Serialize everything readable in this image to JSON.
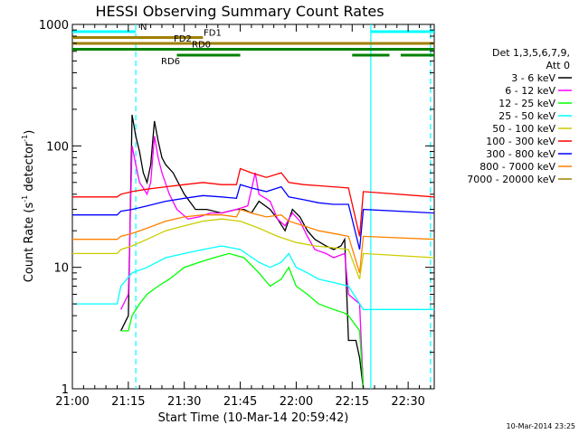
{
  "chart_data": {
    "type": "line",
    "title": "HESSI Observing Summary Count Rates",
    "xlabel": "Start Time (10-Mar-14 20:59:42)",
    "ylabel_main": "Count Rate (s",
    "ylabel_sup1": "-1",
    "ylabel_mid": " detector",
    "ylabel_sup2": "-1",
    "ylabel_end": ")",
    "y_scale": "log",
    "ylim": [
      1,
      1000
    ],
    "xlim_minutes": [
      0,
      97
    ],
    "x_ticks": [
      {
        "label": "21:00",
        "minute": 0
      },
      {
        "label": "21:15",
        "minute": 15
      },
      {
        "label": "21:30",
        "minute": 30
      },
      {
        "label": "21:45",
        "minute": 45
      },
      {
        "label": "22:00",
        "minute": 60
      },
      {
        "label": "22:15",
        "minute": 75
      },
      {
        "label": "22:30",
        "minute": 90
      }
    ],
    "y_ticks": [
      {
        "label": "1",
        "value": 1
      },
      {
        "label": "10",
        "value": 10
      },
      {
        "label": "100",
        "value": 100
      },
      {
        "label": "1000",
        "value": 1000
      }
    ],
    "legend_header": [
      "Det 1,3,5,6,7,9,",
      "Att 0"
    ],
    "legend_placement": "right",
    "timestamp": "10-Mar-2014 23:25",
    "series": [
      {
        "name": "3 - 6 keV",
        "color": "#000000",
        "points": [
          [
            13,
            3
          ],
          [
            15,
            4
          ],
          [
            16,
            180
          ],
          [
            17,
            120
          ],
          [
            18,
            90
          ],
          [
            19,
            60
          ],
          [
            20,
            50
          ],
          [
            21,
            70
          ],
          [
            22,
            160
          ],
          [
            23,
            110
          ],
          [
            24,
            80
          ],
          [
            25,
            70
          ],
          [
            27,
            60
          ],
          [
            30,
            40
          ],
          [
            33,
            30
          ],
          [
            36,
            30
          ],
          [
            40,
            28
          ],
          [
            44,
            30
          ],
          [
            46,
            30
          ],
          [
            48,
            28
          ],
          [
            50,
            35
          ],
          [
            53,
            30
          ],
          [
            55,
            25
          ],
          [
            57,
            20
          ],
          [
            59,
            30
          ],
          [
            61,
            26
          ],
          [
            63,
            20
          ],
          [
            65,
            17
          ],
          [
            68,
            15
          ],
          [
            70,
            14
          ],
          [
            72,
            15
          ],
          [
            73,
            17
          ],
          [
            74,
            2.5
          ],
          [
            76,
            2.5
          ],
          [
            77,
            1.8
          ],
          [
            78,
            1
          ]
        ]
      },
      {
        "name": "6 - 12 keV",
        "color": "#ff00ff",
        "points": [
          [
            13,
            4.5
          ],
          [
            15,
            6
          ],
          [
            16,
            100
          ],
          [
            17,
            70
          ],
          [
            18,
            50
          ],
          [
            19,
            45
          ],
          [
            20,
            40
          ],
          [
            21,
            50
          ],
          [
            22,
            120
          ],
          [
            23,
            80
          ],
          [
            24,
            60
          ],
          [
            26,
            40
          ],
          [
            28,
            30
          ],
          [
            31,
            25
          ],
          [
            34,
            26
          ],
          [
            37,
            28
          ],
          [
            40,
            28
          ],
          [
            44,
            30
          ],
          [
            47,
            32
          ],
          [
            49,
            60
          ],
          [
            50,
            40
          ],
          [
            53,
            35
          ],
          [
            55,
            25
          ],
          [
            57,
            22
          ],
          [
            59,
            28
          ],
          [
            61,
            24
          ],
          [
            63,
            18
          ],
          [
            65,
            14
          ],
          [
            68,
            13
          ],
          [
            70,
            12
          ],
          [
            73,
            13
          ],
          [
            74,
            6
          ],
          [
            77,
            5
          ],
          [
            78,
            1
          ]
        ]
      },
      {
        "name": "12 - 25 keV",
        "color": "#00ff00",
        "points": [
          [
            13,
            3
          ],
          [
            15,
            3
          ],
          [
            16,
            4
          ],
          [
            18,
            5
          ],
          [
            20,
            6
          ],
          [
            23,
            7
          ],
          [
            26,
            8
          ],
          [
            30,
            10
          ],
          [
            34,
            11
          ],
          [
            38,
            12
          ],
          [
            42,
            13
          ],
          [
            46,
            12
          ],
          [
            50,
            9
          ],
          [
            53,
            7
          ],
          [
            56,
            8
          ],
          [
            58,
            10
          ],
          [
            60,
            7
          ],
          [
            63,
            6
          ],
          [
            66,
            5
          ],
          [
            70,
            4.5
          ],
          [
            73,
            4.2
          ],
          [
            74,
            4
          ],
          [
            77,
            3
          ],
          [
            78,
            1
          ]
        ]
      },
      {
        "name": "25 - 50 keV",
        "color": "#00ffff",
        "points": [
          [
            0,
            5
          ],
          [
            12,
            5
          ],
          [
            13,
            7
          ],
          [
            16,
            9
          ],
          [
            20,
            10
          ],
          [
            25,
            12
          ],
          [
            30,
            13
          ],
          [
            35,
            14
          ],
          [
            40,
            15
          ],
          [
            45,
            14
          ],
          [
            50,
            11
          ],
          [
            53,
            10
          ],
          [
            56,
            11
          ],
          [
            58,
            13
          ],
          [
            60,
            10
          ],
          [
            63,
            9
          ],
          [
            66,
            8
          ],
          [
            70,
            7.5
          ],
          [
            74,
            7
          ],
          [
            78,
            4.5
          ],
          [
            97,
            4.5
          ]
        ]
      },
      {
        "name": "50 - 100 keV",
        "color": "#cccc00",
        "points": [
          [
            0,
            13
          ],
          [
            12,
            13
          ],
          [
            13,
            14
          ],
          [
            16,
            15
          ],
          [
            20,
            17
          ],
          [
            25,
            20
          ],
          [
            30,
            22
          ],
          [
            35,
            24
          ],
          [
            40,
            25
          ],
          [
            45,
            24
          ],
          [
            50,
            21
          ],
          [
            55,
            18
          ],
          [
            60,
            16
          ],
          [
            65,
            15
          ],
          [
            70,
            14.5
          ],
          [
            74,
            14
          ],
          [
            77,
            8
          ],
          [
            78,
            13
          ],
          [
            97,
            12
          ]
        ]
      },
      {
        "name": "100 - 300 keV",
        "color": "#ff0000",
        "points": [
          [
            0,
            38
          ],
          [
            12,
            38
          ],
          [
            13,
            40
          ],
          [
            16,
            42
          ],
          [
            20,
            44
          ],
          [
            25,
            46
          ],
          [
            30,
            48
          ],
          [
            35,
            50
          ],
          [
            40,
            48
          ],
          [
            44,
            48
          ],
          [
            45,
            65
          ],
          [
            48,
            60
          ],
          [
            52,
            55
          ],
          [
            56,
            60
          ],
          [
            58,
            50
          ],
          [
            62,
            48
          ],
          [
            66,
            47
          ],
          [
            70,
            46
          ],
          [
            74,
            45
          ],
          [
            77,
            18
          ],
          [
            78,
            42
          ],
          [
            97,
            38
          ]
        ]
      },
      {
        "name": "300 - 800 keV",
        "color": "#0000ff",
        "points": [
          [
            0,
            27
          ],
          [
            12,
            27
          ],
          [
            13,
            29
          ],
          [
            16,
            30
          ],
          [
            20,
            32
          ],
          [
            25,
            35
          ],
          [
            30,
            37
          ],
          [
            35,
            39
          ],
          [
            40,
            38
          ],
          [
            44,
            37
          ],
          [
            45,
            48
          ],
          [
            48,
            45
          ],
          [
            52,
            42
          ],
          [
            56,
            46
          ],
          [
            58,
            38
          ],
          [
            62,
            36
          ],
          [
            66,
            34
          ],
          [
            70,
            33
          ],
          [
            74,
            33
          ],
          [
            77,
            14
          ],
          [
            78,
            30
          ],
          [
            97,
            28
          ]
        ]
      },
      {
        "name": "800 - 7000 keV",
        "color": "#ff8000",
        "points": [
          [
            0,
            17
          ],
          [
            12,
            17
          ],
          [
            13,
            18
          ],
          [
            16,
            19
          ],
          [
            20,
            21
          ],
          [
            25,
            24
          ],
          [
            30,
            26
          ],
          [
            35,
            27
          ],
          [
            40,
            27
          ],
          [
            44,
            26
          ],
          [
            45,
            30
          ],
          [
            48,
            28
          ],
          [
            52,
            26
          ],
          [
            56,
            27
          ],
          [
            58,
            24
          ],
          [
            62,
            22
          ],
          [
            66,
            20
          ],
          [
            70,
            19
          ],
          [
            74,
            18
          ],
          [
            77,
            9
          ],
          [
            78,
            18
          ],
          [
            97,
            17
          ]
        ]
      },
      {
        "name": "7000 - 20000 keV",
        "color": "#a08000",
        "points": []
      }
    ],
    "flags": [
      {
        "label": "N",
        "color": "#00ffff",
        "segments": [
          [
            0,
            17
          ],
          [
            80,
            97
          ]
        ],
        "level": 1
      },
      {
        "label": "FD1",
        "color": "#a08000",
        "segments": [
          [
            0,
            35
          ]
        ],
        "level": 2
      },
      {
        "label": "FD2",
        "color": "#a08000",
        "segments": [
          [
            0,
            97
          ]
        ],
        "level": 3
      },
      {
        "label": "RD0",
        "color": "#008000",
        "segments": [
          [
            0,
            97
          ]
        ],
        "level": 4
      },
      {
        "label": "RD6",
        "color": "#008000",
        "segments": [
          [
            28,
            45
          ],
          [
            75,
            85
          ],
          [
            88,
            97
          ]
        ],
        "level": 5
      }
    ],
    "vertical_markers": [
      {
        "minute": 17,
        "color": "#00ffff",
        "style": "dashed"
      },
      {
        "minute": 80,
        "color": "#00ffff",
        "style": "solid"
      },
      {
        "minute": 96,
        "color": "#00ffff",
        "style": "dashed"
      }
    ]
  }
}
